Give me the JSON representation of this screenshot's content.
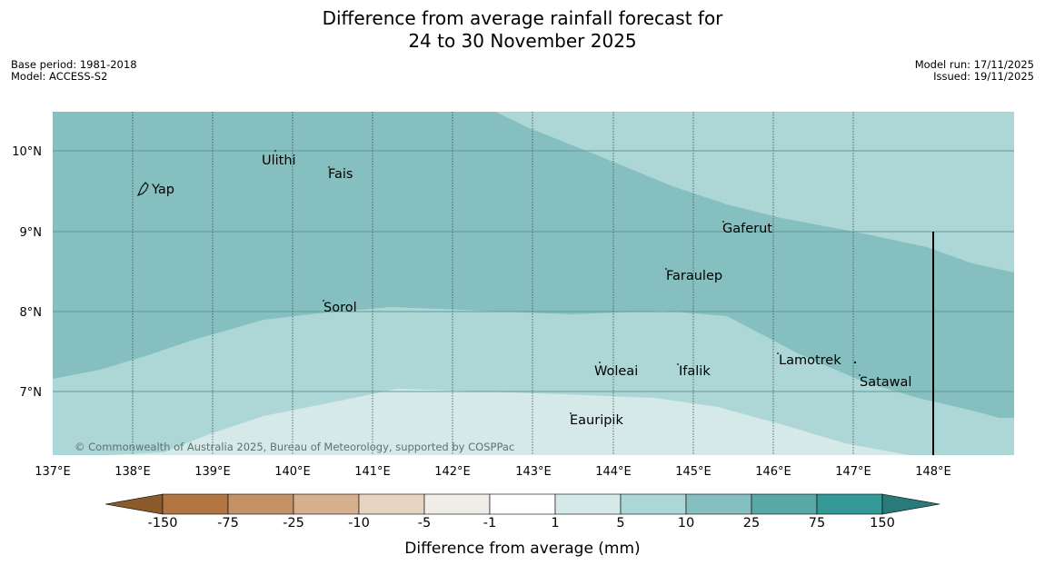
{
  "title": {
    "line1": "Difference from average rainfall forecast for",
    "line2": "24 to 30 November 2025"
  },
  "meta_left": {
    "base_period": "Base period: 1981-2018",
    "model": "Model: ACCESS-S2"
  },
  "meta_right": {
    "model_run": "Model run: 17/11/2025",
    "issued": "Issued: 19/11/2025"
  },
  "map": {
    "lon_labels": [
      "137°E",
      "138°E",
      "139°E",
      "140°E",
      "141°E",
      "142°E",
      "143°E",
      "144°E",
      "145°E",
      "146°E",
      "147°E",
      "148°E"
    ],
    "lat_labels": [
      "10°N",
      "9°N",
      "8°N",
      "7°N"
    ],
    "places": [
      {
        "name": "Ulithi"
      },
      {
        "name": "Fais"
      },
      {
        "name": "Yap"
      },
      {
        "name": "Gaferut"
      },
      {
        "name": "Faraulep"
      },
      {
        "name": "Sorol"
      },
      {
        "name": "Lamotrek"
      },
      {
        "name": "Woleai"
      },
      {
        "name": "Ifalik"
      },
      {
        "name": "Satawal"
      },
      {
        "name": "Eauripik"
      }
    ],
    "copyright": "© Commonwealth of Australia 2025, Bureau of Meteorology, supported by COSPPac",
    "colors": {
      "band_10_25": "#85bfbf",
      "band_5_10": "#add6d6",
      "band_1_5": "#d5e9e9"
    }
  },
  "colorbar": {
    "title": "Difference from average (mm)",
    "ticks": [
      "-150",
      "-75",
      "-25",
      "-10",
      "-5",
      "-1",
      "1",
      "5",
      "10",
      "25",
      "75",
      "150"
    ],
    "colors": [
      "#8b5a2b",
      "#b07540",
      "#c39165",
      "#d6b08d",
      "#e6d3c2",
      "#f0ece8",
      "#ffffff",
      "#d5e9e9",
      "#add6d6",
      "#85bfbf",
      "#58a8a8",
      "#339999",
      "#2a7a7a"
    ]
  }
}
